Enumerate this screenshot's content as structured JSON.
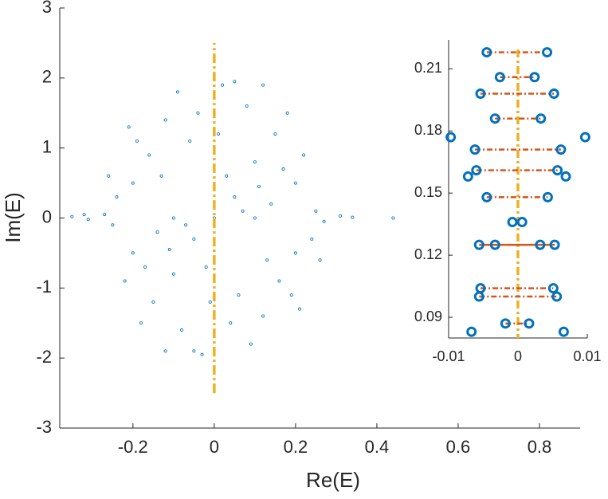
{
  "chart_data": {
    "type": "scatter",
    "xlabel": "Re(E)",
    "ylabel": "Im(E)",
    "xlim": [
      -0.38,
      0.9
    ],
    "ylim": [
      -3,
      3
    ],
    "xticks": [
      -0.2,
      0,
      0.2,
      0.4,
      0.6,
      0.8
    ],
    "yticks": [
      -3,
      -2,
      -1,
      0,
      1,
      2,
      3
    ],
    "color": "#0072BD",
    "reference_line": {
      "x": 0,
      "y": [
        -2.5,
        2.5
      ],
      "color": "#EDB120"
    },
    "x": [
      0,
      0.05,
      -0.05,
      0.1,
      -0.1,
      0.15,
      -0.15,
      0.2,
      -0.2,
      0.2,
      -0.2,
      0.08,
      -0.08,
      0.02,
      -0.03,
      0.12,
      -0.12,
      0.25,
      -0.25,
      0.24,
      -0.24,
      0.18,
      -0.18,
      0.06,
      -0.06,
      0.14,
      -0.14,
      0.1,
      -0.1,
      0.16,
      -0.16,
      0.03,
      -0.02,
      0.22,
      -0.22,
      0.09,
      -0.09,
      0.27,
      -0.27,
      0.11,
      -0.11,
      0.04,
      -0.04,
      0.19,
      -0.19,
      0.07,
      -0.07,
      0.13,
      -0.13,
      0.01,
      -0.01,
      0.17,
      -0.17,
      0.21,
      -0.21,
      0.05,
      -0.05,
      0.26,
      -0.26,
      0.12,
      -0.12,
      -0.35,
      -0.32,
      0.31,
      0.34,
      0.44,
      -0.31
    ],
    "y": [
      0,
      0.3,
      -0.3,
      0.8,
      -0.8,
      1.2,
      -1.2,
      0.5,
      0.5,
      -0.5,
      -0.5,
      1.6,
      -1.6,
      1.9,
      -1.95,
      -1.4,
      1.4,
      0.1,
      -0.1,
      -0.3,
      0.3,
      1.5,
      -1.5,
      -1.1,
      1.1,
      0.2,
      -0.2,
      0,
      0,
      -0.9,
      0.9,
      0.6,
      -0.7,
      0.9,
      -0.9,
      -1.8,
      1.8,
      -0.05,
      0.05,
      0.45,
      -0.45,
      -1.5,
      1.5,
      -1.1,
      1.1,
      0.1,
      -0.1,
      -0.6,
      0.6,
      1.2,
      -1.2,
      0.7,
      -0.7,
      -1.3,
      1.3,
      1.95,
      -1.9,
      -0.6,
      0.6,
      1.9,
      -1.9,
      0.02,
      0.05,
      0.03,
      0.01,
      0,
      -0.02
    ],
    "inset": {
      "type": "scatter",
      "xlim": [
        -0.01,
        0.01
      ],
      "ylim": [
        0.08,
        0.224
      ],
      "xticks": [
        -0.01,
        0,
        0.01
      ],
      "yticks": [
        0.09,
        0.12,
        0.15,
        0.18,
        0.21
      ],
      "color": "#0072BD",
      "line_color": "#D95319",
      "reference_line": {
        "x": 0,
        "color": "#EDB120"
      },
      "rows": [
        {
          "y": 0.218,
          "x": [
            -0.0045,
            0.0042
          ],
          "line": "dashed"
        },
        {
          "y": 0.206,
          "x": [
            -0.0026,
            0.0024
          ],
          "line": "dashed"
        },
        {
          "y": 0.198,
          "x": [
            -0.0054,
            0.0052
          ],
          "line": "dashed"
        },
        {
          "y": 0.186,
          "x": [
            -0.0033,
            0.0033
          ],
          "line": "dashed"
        },
        {
          "y": 0.177,
          "x": [
            -0.0097,
            0.0097
          ],
          "line": null
        },
        {
          "y": 0.171,
          "x": [
            -0.0062,
            0.0062
          ],
          "line": "dashed"
        },
        {
          "y": 0.161,
          "x": [
            -0.006,
            0.0057
          ],
          "line": "dashed"
        },
        {
          "y": 0.158,
          "x": [
            -0.0072,
            0.0069
          ],
          "line": null
        },
        {
          "y": 0.148,
          "x": [
            -0.0045,
            0.0043
          ],
          "line": "dashed"
        },
        {
          "y": 0.136,
          "x": [
            -0.0008,
            0.0006
          ],
          "line": null
        },
        {
          "y": 0.125,
          "x": [
            -0.0056,
            -0.0033,
            0.0032,
            0.0053
          ],
          "line": "solid"
        },
        {
          "y": 0.104,
          "x": [
            -0.0054,
            0.0051
          ],
          "line": "dashed"
        },
        {
          "y": 0.1,
          "x": [
            -0.0056,
            0.0056
          ],
          "line": "dashed"
        },
        {
          "y": 0.087,
          "x": [
            -0.0018,
            0.0016
          ],
          "line": "dashed"
        },
        {
          "y": 0.083,
          "x": [
            -0.0067,
            0.0066
          ],
          "line": null
        }
      ]
    }
  }
}
